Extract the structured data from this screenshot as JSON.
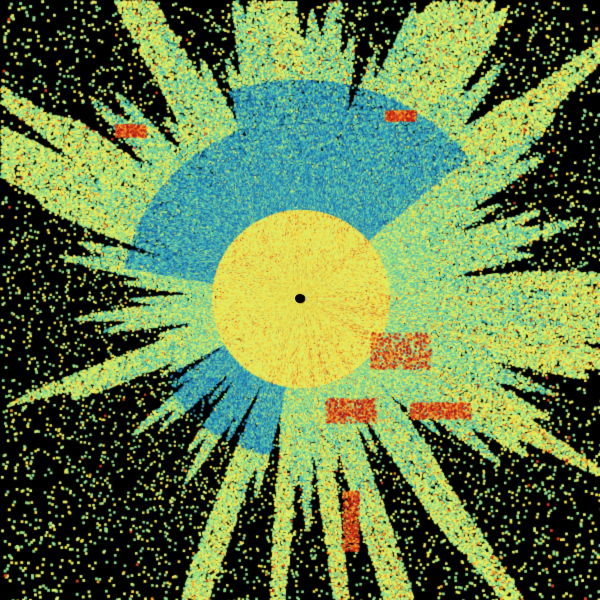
{
  "image": {
    "kind": "radar-reflectivity-sweep",
    "background": "#000000",
    "palette": [
      "#1f6fa8",
      "#2a9cc0",
      "#4fc1b0",
      "#8fdc8a",
      "#d8f070",
      "#f2e24a",
      "#f0a02a",
      "#d8401c",
      "#b01818"
    ]
  }
}
